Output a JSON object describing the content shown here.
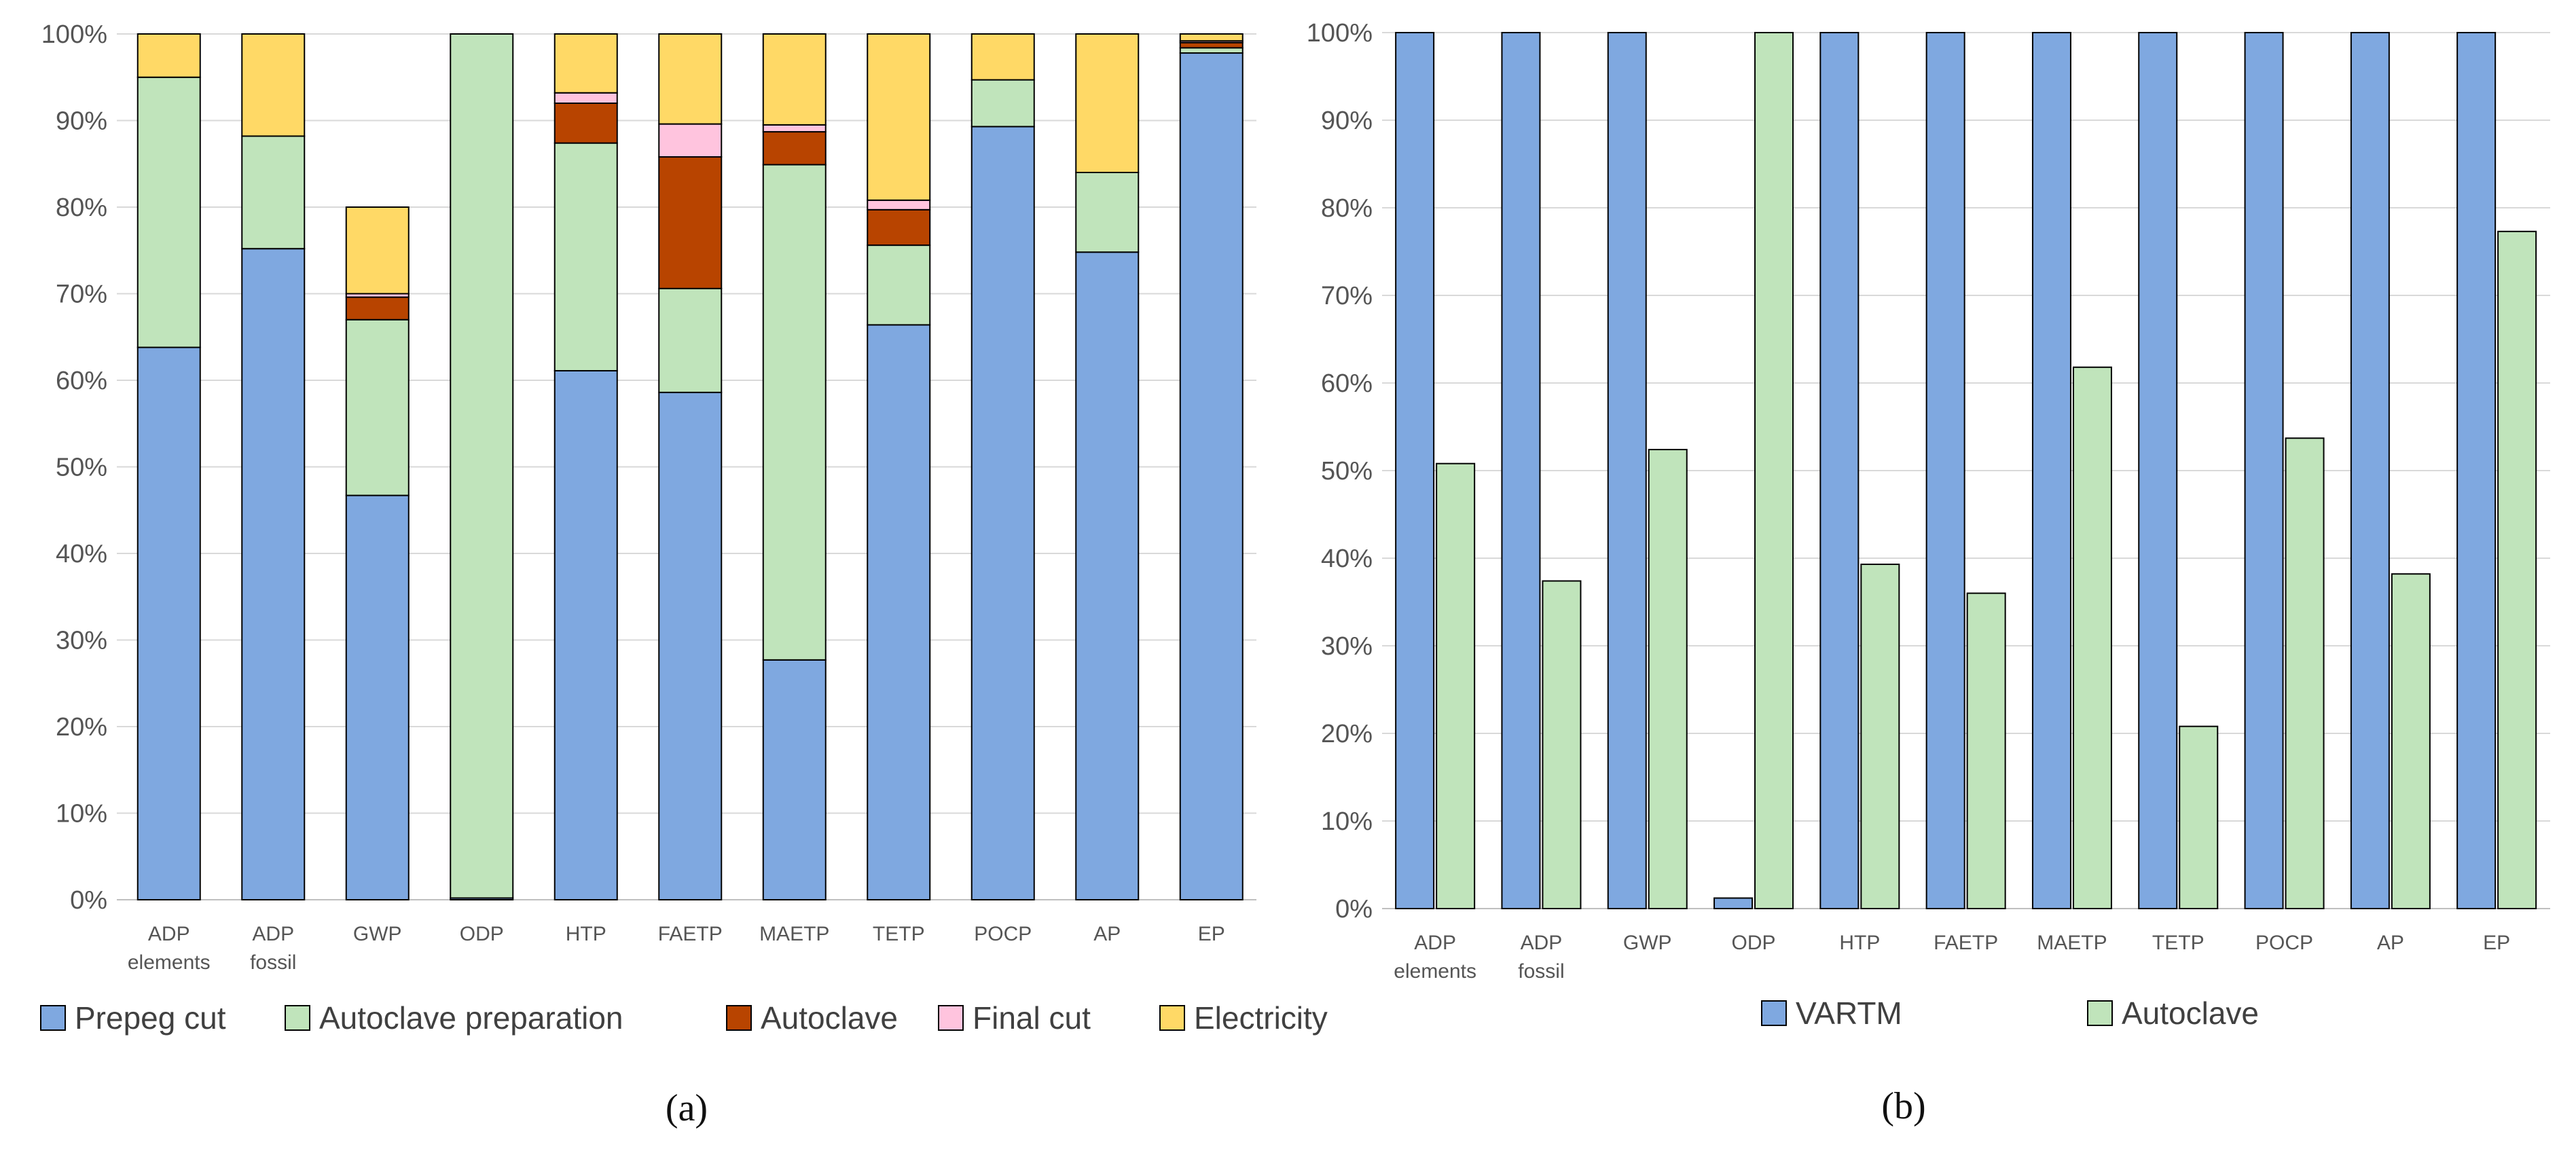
{
  "chart_data": [
    {
      "type": "bar",
      "stacked": true,
      "panel_label": "(a)",
      "title": "",
      "xlabel": "",
      "ylabel": "",
      "ylim": [
        0,
        100
      ],
      "yticks": [
        "0%",
        "10%",
        "20%",
        "30%",
        "40%",
        "50%",
        "60%",
        "70%",
        "80%",
        "90%",
        "100%"
      ],
      "grid": true,
      "legend_position": "bottom",
      "categories": [
        [
          "ADP",
          "elements"
        ],
        [
          "ADP",
          "fossil"
        ],
        [
          "GWP"
        ],
        [
          "ODP"
        ],
        [
          "HTP"
        ],
        [
          "FAETP"
        ],
        [
          "MAETP"
        ],
        [
          "TETP"
        ],
        [
          "POCP"
        ],
        [
          "AP"
        ],
        [
          "EP"
        ]
      ],
      "series": [
        {
          "name": "Prepeg cut",
          "color": "#7fa8e0",
          "values": [
            63.8,
            75.2,
            46.7,
            0.2,
            61.1,
            58.6,
            27.7,
            66.4,
            89.3,
            74.8,
            97.8
          ]
        },
        {
          "name": "Autoclave preparation",
          "color": "#c0e4bb",
          "values": [
            31.2,
            13.0,
            20.3,
            99.8,
            26.3,
            12.0,
            57.2,
            9.2,
            5.4,
            9.2,
            0.6
          ]
        },
        {
          "name": "Autoclave",
          "color": "#b84400",
          "values": [
            0.0,
            0.0,
            2.6,
            0.0,
            4.6,
            15.2,
            3.8,
            4.1,
            0.0,
            0.0,
            0.6
          ]
        },
        {
          "name": "Final cut",
          "color": "#ffc4de",
          "values": [
            0.0,
            0.0,
            0.4,
            0.0,
            1.2,
            3.8,
            0.8,
            1.1,
            0.0,
            0.0,
            0.2
          ]
        },
        {
          "name": "Electricity",
          "color": "#ffd966",
          "values": [
            5.0,
            11.8,
            10.0,
            0.0,
            6.8,
            10.4,
            10.5,
            19.2,
            5.3,
            16.0,
            0.8
          ]
        }
      ]
    },
    {
      "type": "bar",
      "stacked": false,
      "panel_label": "(b)",
      "title": "",
      "xlabel": "",
      "ylabel": "",
      "ylim": [
        0,
        100
      ],
      "yticks": [
        "0%",
        "10%",
        "20%",
        "30%",
        "40%",
        "50%",
        "60%",
        "70%",
        "80%",
        "90%",
        "100%"
      ],
      "grid": true,
      "legend_position": "bottom",
      "categories": [
        [
          "ADP",
          "elements"
        ],
        [
          "ADP",
          "fossil"
        ],
        [
          "GWP"
        ],
        [
          "ODP"
        ],
        [
          "HTP"
        ],
        [
          "FAETP"
        ],
        [
          "MAETP"
        ],
        [
          "TETP"
        ],
        [
          "POCP"
        ],
        [
          "AP"
        ],
        [
          "EP"
        ]
      ],
      "series": [
        {
          "name": "VARTM",
          "color": "#7fa8e0",
          "values": [
            100,
            100,
            100,
            1.2,
            100,
            100,
            100,
            100,
            100,
            100,
            100
          ]
        },
        {
          "name": "Autoclave",
          "color": "#c0e4bb",
          "values": [
            50.8,
            37.4,
            52.4,
            100,
            39.3,
            36.0,
            61.8,
            20.8,
            53.7,
            38.2,
            77.3
          ]
        }
      ]
    }
  ]
}
